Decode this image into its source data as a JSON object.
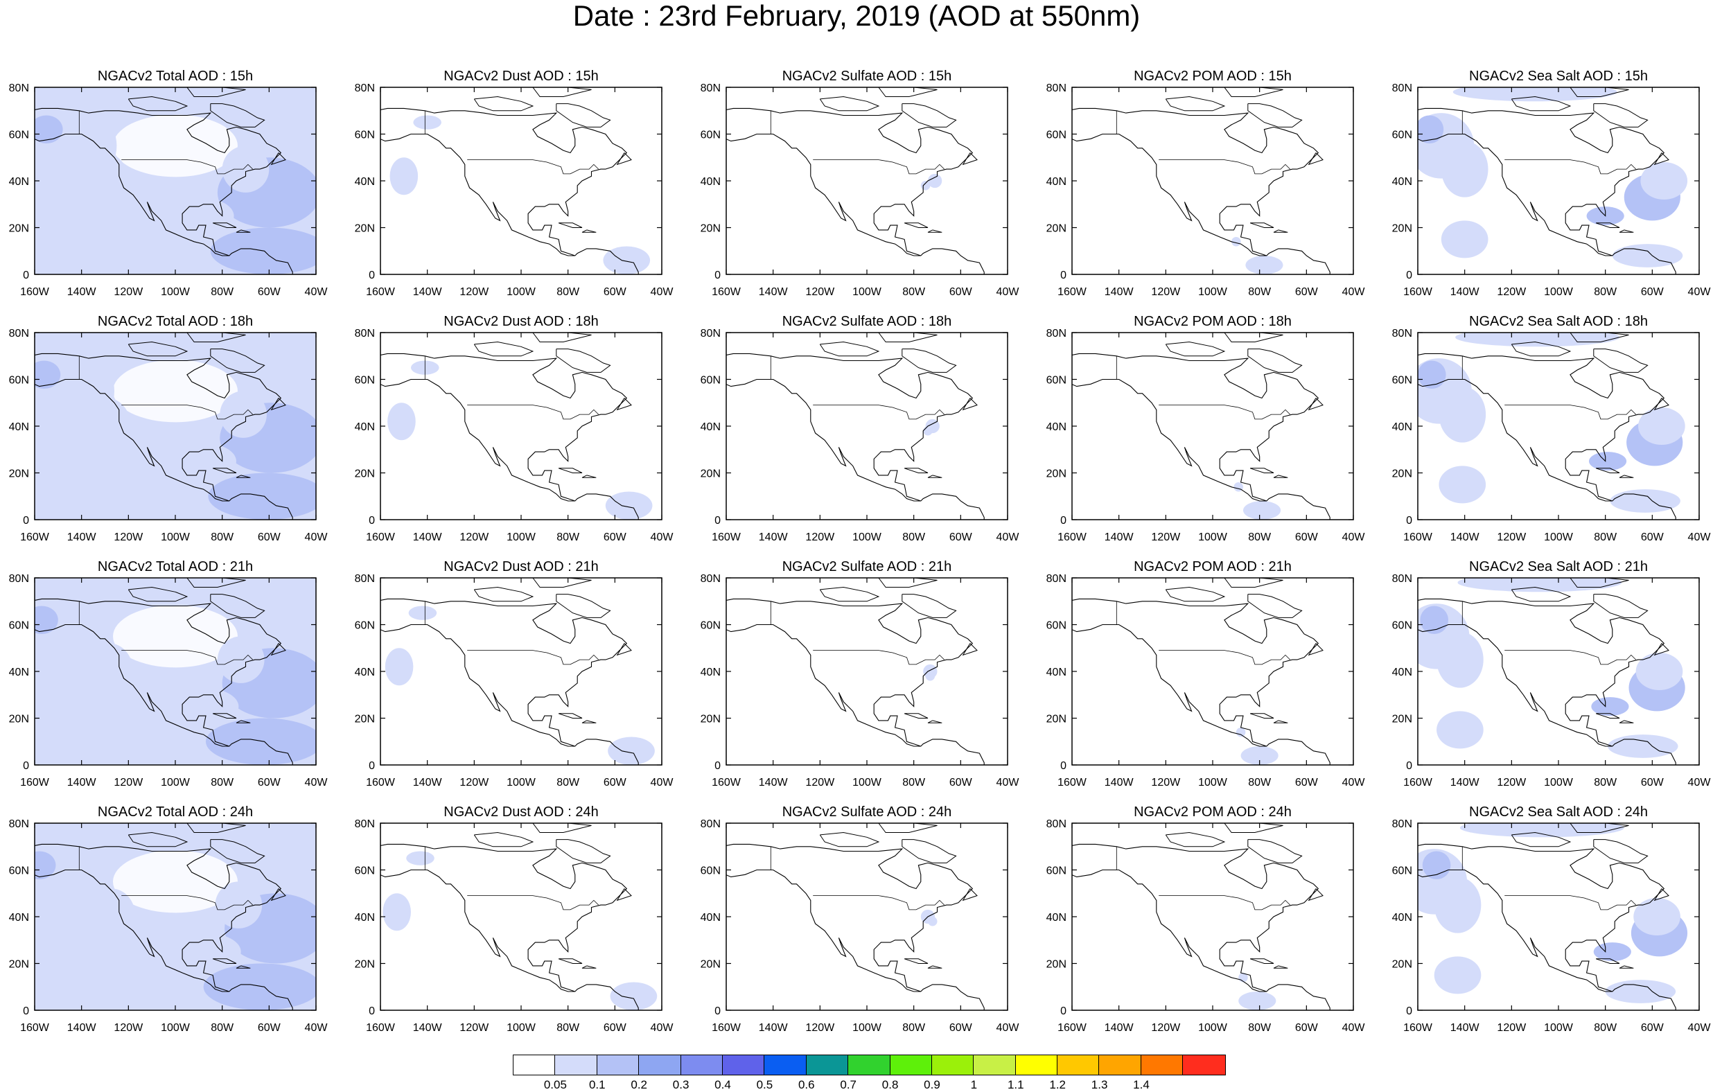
{
  "title": "Date : 23rd February, 2019 (AOD at 550nm)",
  "map": {
    "lon_ticks": [
      "160W",
      "140W",
      "120W",
      "100W",
      "80W",
      "60W",
      "40W"
    ],
    "lat_ticks": [
      "80N",
      "60N",
      "40N",
      "20N",
      "0"
    ],
    "domain": "North America, 0–80N, 160W–40W",
    "palette": {
      "land_outline": "#000000",
      "light_blue": "#d4dcfa",
      "mid_blue": "#b4c2f6"
    }
  },
  "panels": [
    {
      "title": "NGACv2 Total AOD : 15h",
      "field": "total",
      "hour": 15
    },
    {
      "title": "NGACv2 Dust AOD : 15h",
      "field": "dust",
      "hour": 15
    },
    {
      "title": "NGACv2 Sulfate AOD : 15h",
      "field": "sulfate",
      "hour": 15
    },
    {
      "title": "NGACv2 POM AOD : 15h",
      "field": "pom",
      "hour": 15
    },
    {
      "title": "NGACv2 Sea Salt AOD : 15h",
      "field": "seasalt",
      "hour": 15
    },
    {
      "title": "NGACv2 Total AOD : 18h",
      "field": "total",
      "hour": 18
    },
    {
      "title": "NGACv2 Dust AOD : 18h",
      "field": "dust",
      "hour": 18
    },
    {
      "title": "NGACv2 Sulfate AOD : 18h",
      "field": "sulfate",
      "hour": 18
    },
    {
      "title": "NGACv2 POM AOD : 18h",
      "field": "pom",
      "hour": 18
    },
    {
      "title": "NGACv2 Sea Salt AOD : 18h",
      "field": "seasalt",
      "hour": 18
    },
    {
      "title": "NGACv2 Total AOD : 21h",
      "field": "total",
      "hour": 21
    },
    {
      "title": "NGACv2 Dust AOD : 21h",
      "field": "dust",
      "hour": 21
    },
    {
      "title": "NGACv2 Sulfate AOD : 21h",
      "field": "sulfate",
      "hour": 21
    },
    {
      "title": "NGACv2 POM AOD : 21h",
      "field": "pom",
      "hour": 21
    },
    {
      "title": "NGACv2 Sea Salt AOD : 21h",
      "field": "seasalt",
      "hour": 21
    },
    {
      "title": "NGACv2 Total AOD : 24h",
      "field": "total",
      "hour": 24
    },
    {
      "title": "NGACv2 Dust AOD : 24h",
      "field": "dust",
      "hour": 24
    },
    {
      "title": "NGACv2 Sulfate AOD : 24h",
      "field": "sulfate",
      "hour": 24
    },
    {
      "title": "NGACv2 POM AOD : 24h",
      "field": "pom",
      "hour": 24
    },
    {
      "title": "NGACv2 Sea Salt  AOD : 24h",
      "field": "seasalt",
      "hour": 24
    }
  ],
  "colorbar": {
    "colors": [
      "#ffffff",
      "#d4dcfa",
      "#b4c2f6",
      "#8ea6f2",
      "#7d8cf0",
      "#5f62ea",
      "#0a5ef2",
      "#0b9696",
      "#31d22e",
      "#5ef00a",
      "#9bf00a",
      "#c8f046",
      "#ffff00",
      "#ffc800",
      "#ffa500",
      "#ff7800",
      "#ff2d1e"
    ],
    "labels": [
      "0.05",
      "0.1",
      "0.2",
      "0.3",
      "0.4",
      "0.5",
      "0.6",
      "0.7",
      "0.8",
      "0.9",
      "1",
      "1.1",
      "1.2",
      "1.3",
      "1.4"
    ]
  }
}
